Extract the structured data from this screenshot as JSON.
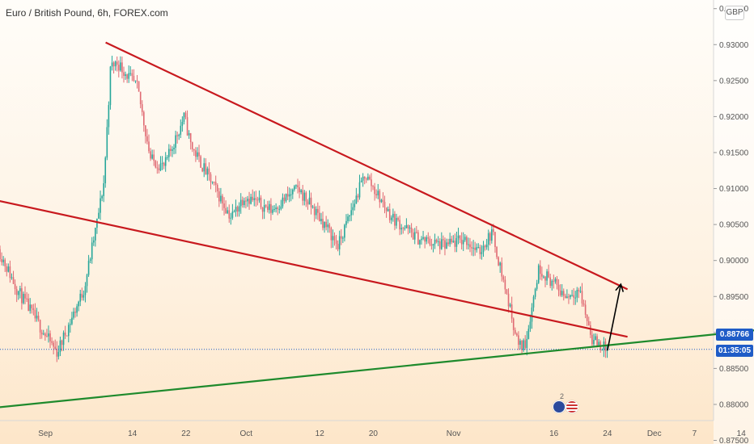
{
  "title": "Euro / British Pound, 6h, FOREX.com",
  "currency": "GBP",
  "last_price": "0.88766",
  "countdown": "01:35:05",
  "events_count": "2",
  "colors": {
    "up": "#26a69a",
    "down": "#e06a73",
    "resistance": "#c8191e",
    "support": "#1e8a2c",
    "arrow": "#000000",
    "price_line": "#1f5cc7"
  },
  "chart_data": {
    "type": "candlestick",
    "title": "Euro / British Pound, 6h, FOREX.com",
    "y_ticks": [
      "0.93500",
      "0.93000",
      "0.92500",
      "0.92000",
      "0.91500",
      "0.91000",
      "0.90500",
      "0.90000",
      "0.89500",
      "0.89000",
      "0.88500",
      "0.88000",
      "0.87500"
    ],
    "x_ticks": [
      "Sep",
      "14",
      "22",
      "Oct",
      "12",
      "20",
      "Nov",
      "16",
      "24",
      "Dec",
      "7",
      "14"
    ],
    "ylim": [
      0.8745,
      0.9362
    ],
    "trend_lines": [
      {
        "name": "upper resistance",
        "color": "red",
        "from": [
          "2020-09-10",
          0.9303
        ],
        "to": [
          "2020-11-27",
          0.896
        ]
      },
      {
        "name": "lower resistance",
        "color": "red",
        "from": [
          "2020-08-24",
          0.9085
        ],
        "to": [
          "2020-11-27",
          0.8894
        ]
      },
      {
        "name": "support",
        "color": "green",
        "from": [
          "2020-08-24",
          0.8795
        ],
        "to": [
          "2020-12-16",
          0.8903
        ]
      }
    ],
    "projection_arrow": {
      "from": [
        "2020-11-24",
        0.8875
      ],
      "to": [
        "2020-11-26",
        0.8967
      ]
    },
    "last_price": 0.88766,
    "price_path": [
      [
        "2020-08-24",
        0.904
      ],
      [
        "2020-08-28",
        0.896
      ],
      [
        "2020-09-01",
        0.89
      ],
      [
        "2020-09-03",
        0.8872
      ],
      [
        "2020-09-07",
        0.896
      ],
      [
        "2020-09-09",
        0.9055
      ],
      [
        "2020-09-10",
        0.911
      ],
      [
        "2020-09-11",
        0.927
      ],
      [
        "2020-09-12",
        0.9275
      ],
      [
        "2020-09-15",
        0.924
      ],
      [
        "2020-09-17",
        0.914
      ],
      [
        "2020-09-19",
        0.913
      ],
      [
        "2020-09-22",
        0.92
      ],
      [
        "2020-09-23",
        0.916
      ],
      [
        "2020-09-26",
        0.911
      ],
      [
        "2020-09-29",
        0.906
      ],
      [
        "2020-10-01",
        0.909
      ],
      [
        "2020-10-05",
        0.907
      ],
      [
        "2020-10-09",
        0.91
      ],
      [
        "2020-10-13",
        0.905
      ],
      [
        "2020-10-15",
        0.902
      ],
      [
        "2020-10-19",
        0.912
      ],
      [
        "2020-10-21",
        0.909
      ],
      [
        "2020-10-23",
        0.906
      ],
      [
        "2020-10-27",
        0.903
      ],
      [
        "2020-10-31",
        0.902
      ],
      [
        "2020-11-03",
        0.903
      ],
      [
        "2020-11-05",
        0.901
      ],
      [
        "2020-11-07",
        0.904
      ],
      [
        "2020-11-09",
        0.896
      ],
      [
        "2020-11-11",
        0.888
      ],
      [
        "2020-11-12",
        0.8885
      ],
      [
        "2020-11-14",
        0.899
      ],
      [
        "2020-11-16",
        0.897
      ],
      [
        "2020-11-18",
        0.895
      ],
      [
        "2020-11-20",
        0.896
      ],
      [
        "2020-11-22",
        0.889
      ],
      [
        "2020-11-24",
        0.8877
      ]
    ]
  }
}
